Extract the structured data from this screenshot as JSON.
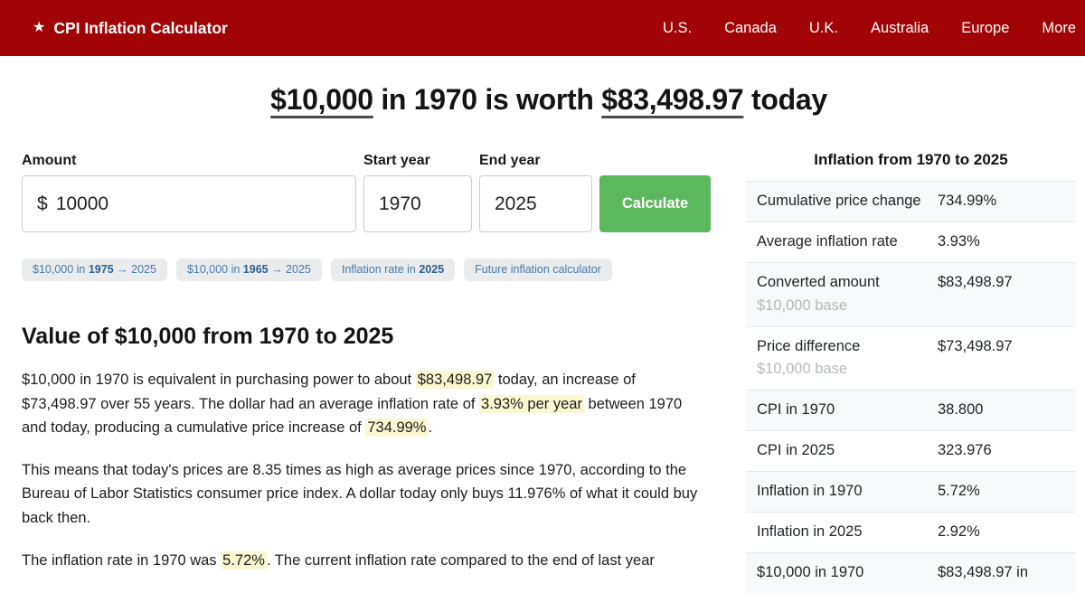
{
  "colors": {
    "navbar_bg": "#a00404",
    "calculate_button_bg": "#5cb85c",
    "highlight_bg": "#fbf7d0",
    "chip_text": "#4a7dad",
    "chip_bg": "#e9ebed"
  },
  "navbar": {
    "brand_icon": "★",
    "brand": "CPI Inflation Calculator",
    "items": [
      "U.S.",
      "Canada",
      "U.K.",
      "Australia",
      "Europe",
      "More"
    ]
  },
  "heading": {
    "segments": [
      {
        "text": "$10,000",
        "underline": true
      },
      {
        "text": " in 1970 is worth "
      },
      {
        "text": "$83,498.97",
        "underline": true
      },
      {
        "text": " today"
      }
    ]
  },
  "form": {
    "amount_label": "Amount",
    "currency_symbol": "$",
    "amount_value": "10000",
    "start_year_label": "Start year",
    "start_year_value": "1970",
    "end_year_label": "End year",
    "end_year_value": "2025",
    "calculate_label": "Calculate"
  },
  "chips": [
    {
      "segments": [
        {
          "text": "$10,000 in "
        },
        {
          "text": "1975",
          "bold": true
        },
        {
          "text": " → 2025"
        }
      ]
    },
    {
      "segments": [
        {
          "text": "$10,000 in "
        },
        {
          "text": "1965",
          "bold": true
        },
        {
          "text": " → 2025"
        }
      ]
    },
    {
      "segments": [
        {
          "text": "Inflation rate in "
        },
        {
          "text": "2025",
          "bold": true
        }
      ]
    },
    {
      "segments": [
        {
          "text": "Future inflation calculator"
        }
      ]
    }
  ],
  "article": {
    "title": "Value of $10,000 from 1970 to 2025",
    "paragraphs": [
      {
        "segments": [
          {
            "text": "$10,000 in 1970 is equivalent in purchasing power to about "
          },
          {
            "text": "$83,498.97",
            "highlight": true
          },
          {
            "text": " today, an increase of $73,498.97 over 55 years. The dollar had an average inflation rate of "
          },
          {
            "text": "3.93% per year",
            "highlight": true
          },
          {
            "text": " between 1970 and today, producing a cumulative price increase of "
          },
          {
            "text": "734.99%",
            "highlight": true
          },
          {
            "text": "."
          }
        ]
      },
      {
        "segments": [
          {
            "text": "This means that today's prices are 8.35 times as high as average prices since 1970, according to the Bureau of Labor Statistics consumer price index. A dollar today only buys 11.976% of what it could buy back then."
          }
        ]
      },
      {
        "segments": [
          {
            "text": "The inflation rate in 1970 was "
          },
          {
            "text": "5.72%",
            "highlight": true
          },
          {
            "text": ". The current inflation rate compared to the end of last year"
          }
        ]
      }
    ]
  },
  "sidebar": {
    "title": "Inflation from 1970 to 2025",
    "rows": [
      {
        "label": "Cumulative price change",
        "value": "734.99%"
      },
      {
        "label": "Average inflation rate",
        "value": "3.93%"
      },
      {
        "label": "Converted amount",
        "sublabel": "$10,000 base",
        "value": "$83,498.97"
      },
      {
        "label": "Price difference",
        "sublabel": "$10,000 base",
        "value": "$73,498.97"
      },
      {
        "label": "CPI in 1970",
        "value": "38.800"
      },
      {
        "label": "CPI in 2025",
        "value": "323.976"
      },
      {
        "label": "Inflation in 1970",
        "value": "5.72%"
      },
      {
        "label": "Inflation in 2025",
        "value": "2.92%"
      },
      {
        "label": "$10,000 in 1970",
        "value": "$83,498.97 in"
      }
    ]
  }
}
